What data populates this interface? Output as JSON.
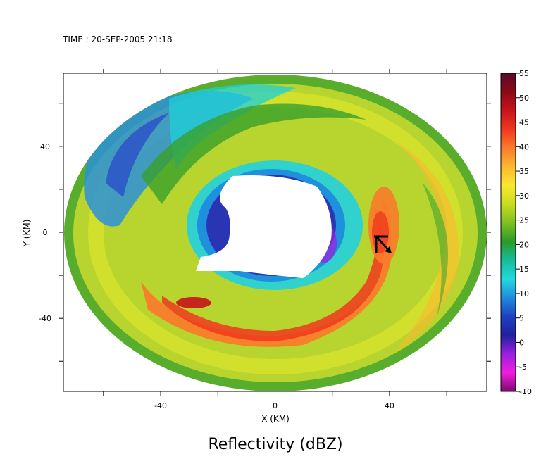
{
  "time_label": "TIME : 20-SEP-2005 21:18",
  "chart_data": {
    "type": "heatmap",
    "title": "Reflectivity (dBZ)",
    "xlabel": "X (KM)",
    "ylabel": "Y (KM)",
    "xlim": [
      -74,
      74
    ],
    "ylim": [
      -74,
      74
    ],
    "x_ticks": [
      -40,
      0,
      40
    ],
    "y_ticks": [
      -40,
      0,
      40
    ],
    "colorbar": {
      "label": "dBZ",
      "range": [
        -10,
        55
      ],
      "ticks": [
        "55",
        "50",
        "45",
        "40",
        "35",
        "30",
        "25",
        "20",
        "15",
        "10",
        "5",
        "0",
        "-5",
        "-10"
      ],
      "colors": [
        "#5a0a2a",
        "#8a0a16",
        "#c8141b",
        "#f0381e",
        "#f87c2a",
        "#fcb830",
        "#f8e830",
        "#c8dc20",
        "#7cc020",
        "#2a9a2a",
        "#16bc9a",
        "#22d8e0",
        "#1e8cdc",
        "#1e40c0",
        "#2020a0",
        "#9a20e0",
        "#f01ee0",
        "#7a0a6a"
      ]
    },
    "storm": {
      "center_x_km": 0,
      "center_y_km": 0,
      "eye_radius_km": 18,
      "eyewall_max_dbz": 50,
      "rainband_peak_dbz": 48,
      "background_dbz": 33
    },
    "aircraft_marker": {
      "x_km": 37,
      "y_km": -4,
      "heading": "southeast"
    }
  }
}
